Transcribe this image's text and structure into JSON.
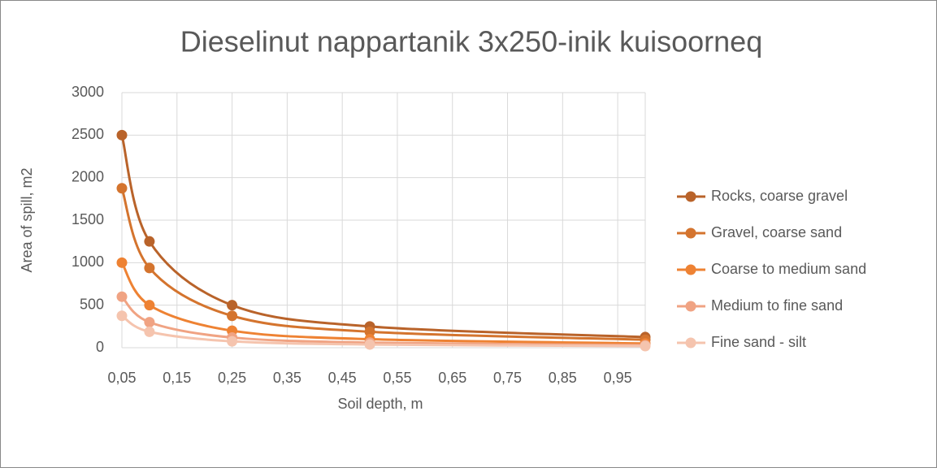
{
  "chart_data": {
    "type": "line",
    "title": "Dieselinut nappartanik 3x250-inik kuisoorneq",
    "x_label": "Soil depth, m",
    "y_label": "Area of spill, m2",
    "x": [
      0.05,
      0.1,
      0.25,
      0.5,
      1.0
    ],
    "series": [
      {
        "name": "Rocks, coarse gravel",
        "color": "#b9632a",
        "values": [
          2500,
          1250,
          500,
          250,
          125
        ]
      },
      {
        "name": "Gravel, coarse sand",
        "color": "#d4742e",
        "values": [
          1875,
          937.5,
          375,
          187.5,
          93.75
        ]
      },
      {
        "name": "Coarse to medium sand",
        "color": "#ee8233",
        "values": [
          1000,
          500,
          200,
          100,
          50
        ]
      },
      {
        "name": "Medium to fine sand",
        "color": "#f0a383",
        "values": [
          600,
          300,
          120,
          60,
          30
        ]
      },
      {
        "name": "Fine sand - silt",
        "color": "#f5c4ae",
        "values": [
          375,
          187.5,
          75,
          37.5,
          18.75
        ]
      }
    ],
    "xlim": [
      0.05,
      1.0
    ],
    "xticks": [
      {
        "value": 0.05,
        "label": "0,05"
      },
      {
        "value": 0.15,
        "label": "0,15"
      },
      {
        "value": 0.25,
        "label": "0,25"
      },
      {
        "value": 0.35,
        "label": "0,35"
      },
      {
        "value": 0.45,
        "label": "0,45"
      },
      {
        "value": 0.55,
        "label": "0,55"
      },
      {
        "value": 0.65,
        "label": "0,65"
      },
      {
        "value": 0.75,
        "label": "0,75"
      },
      {
        "value": 0.85,
        "label": "0,85"
      },
      {
        "value": 0.95,
        "label": "0,95"
      }
    ],
    "ylim": [
      0,
      3000
    ],
    "yticks": [
      0,
      500,
      1000,
      1500,
      2000,
      2500,
      3000
    ],
    "grid": true,
    "legend": "right",
    "smooth": true
  }
}
